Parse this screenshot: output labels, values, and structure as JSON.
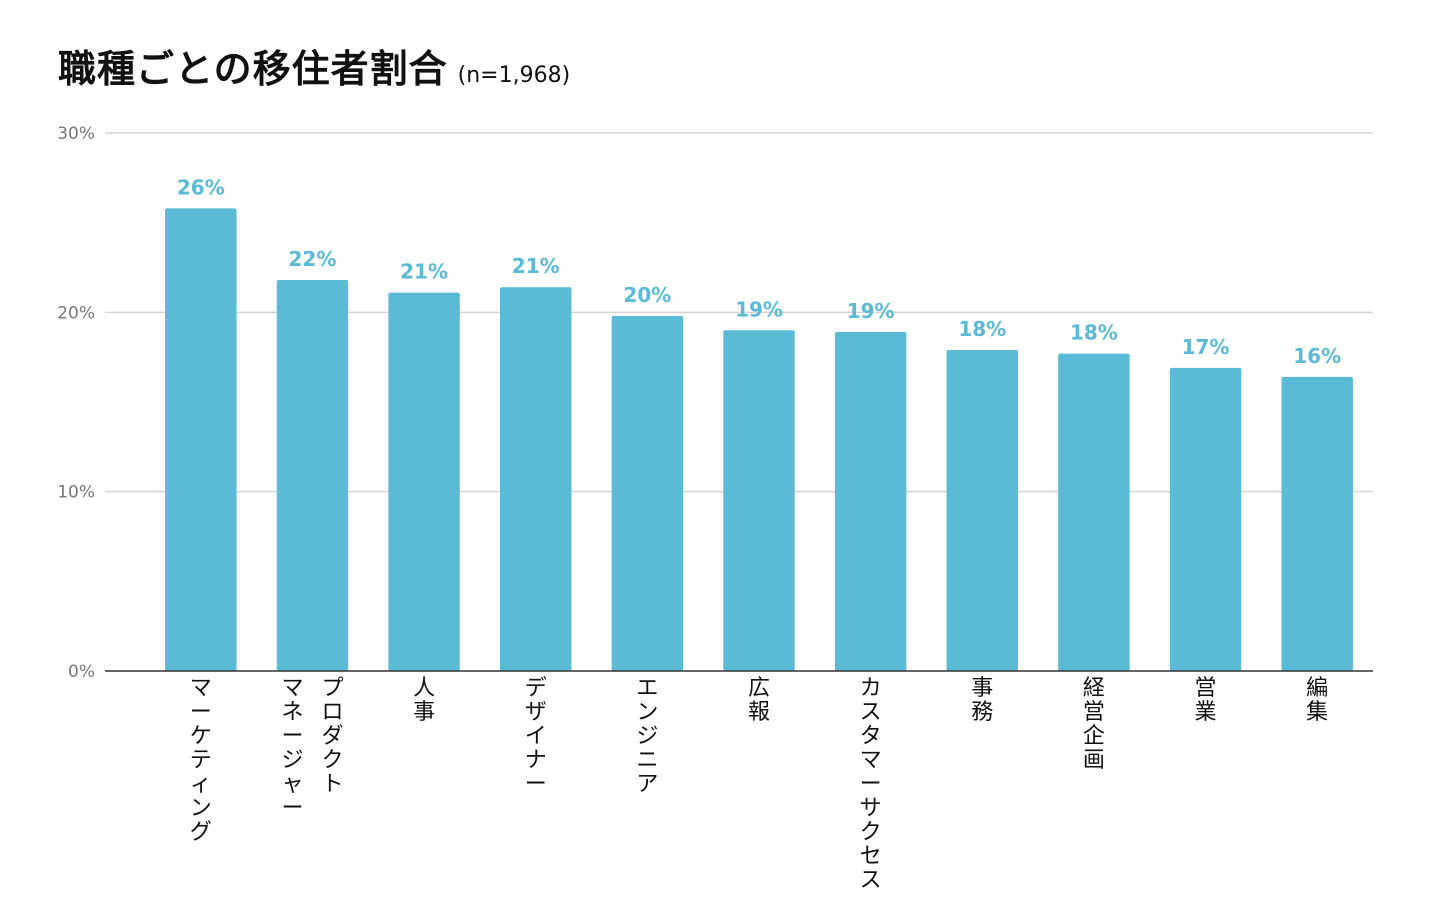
{
  "title": "職種ごとの移住者割合",
  "subtitle": "(n=1,968)",
  "chart_data": {
    "type": "bar",
    "orientation": "vertical",
    "categories": [
      "マーケティング",
      "プロダクトマネージャー",
      "人事",
      "デザイナー",
      "エンジニア",
      "広報",
      "カスタマーサクセス",
      "事務",
      "経営企画",
      "営業",
      "編集"
    ],
    "category_label_lines": [
      [
        "マーケティング"
      ],
      [
        "プロダクト",
        "マネージャー"
      ],
      [
        "人事"
      ],
      [
        "デザイナー"
      ],
      [
        "エンジニア"
      ],
      [
        "広報"
      ],
      [
        "カスタマーサクセス"
      ],
      [
        "事務"
      ],
      [
        "経営企画"
      ],
      [
        "営業"
      ],
      [
        "編集"
      ]
    ],
    "values": [
      25.8,
      21.8,
      21.1,
      21.4,
      19.8,
      19.0,
      18.9,
      17.9,
      17.7,
      16.9,
      16.4
    ],
    "data_labels": [
      "26%",
      "22%",
      "21%",
      "21%",
      "20%",
      "19%",
      "19%",
      "18%",
      "18%",
      "17%",
      "16%"
    ],
    "yticks": [
      0,
      10,
      20,
      30
    ],
    "ytick_labels": [
      "0%",
      "10%",
      "20%",
      "30%"
    ],
    "ylim": [
      0,
      30
    ],
    "xlabel": "",
    "ylabel": "",
    "grid": true,
    "colors": {
      "bar": "#5bbad6",
      "label": "#5bbad6",
      "grid": "#d4d4d4",
      "axis": "#333333"
    }
  }
}
